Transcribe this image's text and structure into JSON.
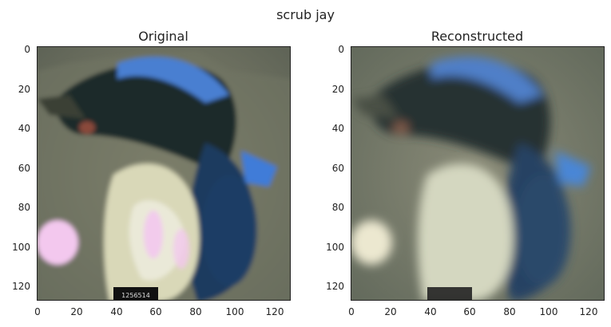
{
  "figure": {
    "suptitle": "scrub jay"
  },
  "panels": [
    {
      "title": "Original",
      "x_ticks": [
        "0",
        "20",
        "40",
        "60",
        "80",
        "100",
        "120"
      ],
      "y_ticks": [
        "0",
        "20",
        "40",
        "60",
        "80",
        "100",
        "120"
      ],
      "image_label": "1256514",
      "blur": 0
    },
    {
      "title": "Reconstructed",
      "x_ticks": [
        "0",
        "20",
        "40",
        "60",
        "80",
        "100",
        "120"
      ],
      "y_ticks": [
        "0",
        "20",
        "40",
        "60",
        "80",
        "100",
        "120"
      ],
      "image_label": "",
      "blur": 1
    }
  ],
  "colors": {
    "background_gravel": "#7f836d",
    "bird_blue": "#4a7fd1",
    "bird_dark": "#1f2a2a",
    "chest_cream": "#e9e6c8",
    "pink_spot": "#f3c8ee"
  }
}
